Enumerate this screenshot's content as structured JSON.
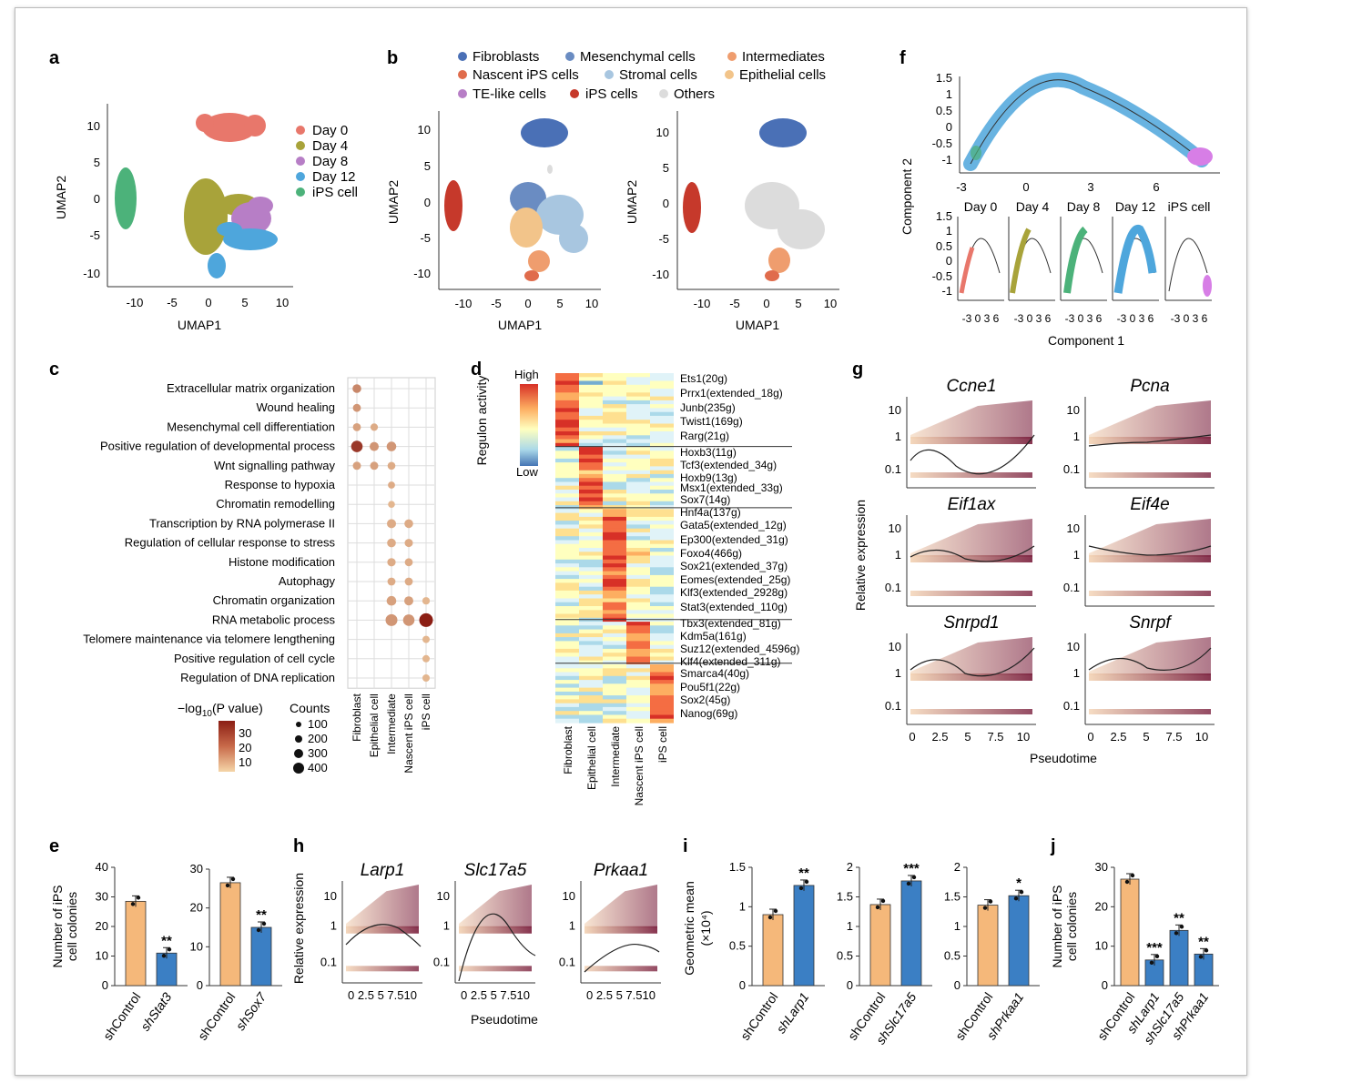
{
  "panel_labels": [
    "a",
    "b",
    "c",
    "d",
    "e",
    "f",
    "g",
    "h",
    "i",
    "j"
  ],
  "colors": {
    "day0": "#e8776b",
    "day4": "#a8a33a",
    "day8": "#b77ec6",
    "day12": "#4ea6dc",
    "ips": "#4cb27a",
    "fibroblasts": "#4a70b6",
    "mesenchymal": "#6a8cc2",
    "intermediates": "#ef9d6e",
    "nascent": "#e06c4c",
    "stromal": "#a8c6e0",
    "epithelial": "#f2c48a",
    "te_like": "#b77ec6",
    "ips_cells": "#c6392b",
    "others": "#dcdcdc",
    "bar_orange": "#f5b87a",
    "bar_blue": "#3b7fc4"
  },
  "panel_a": {
    "xlabel": "UMAP1",
    "ylabel": "UMAP2",
    "xticks": [
      "-10",
      "-5",
      "0",
      "5",
      "10"
    ],
    "yticks": [
      "10",
      "5",
      "0",
      "-5",
      "-10"
    ],
    "legend": [
      "Day 0",
      "Day 4",
      "Day 8",
      "Day 12",
      "iPS cell"
    ]
  },
  "panel_b": {
    "xlabel": "UMAP1",
    "ylabel": "UMAP2",
    "xticks": [
      "-10",
      "-5",
      "0",
      "5",
      "10"
    ],
    "yticks": [
      "10",
      "5",
      "0",
      "-5",
      "-10"
    ],
    "legend": [
      "Fibroblasts",
      "Mesenchymal cells",
      "Intermediates",
      "Nascent iPS cells",
      "Stromal cells",
      "Epithelial cells",
      "TE-like cells",
      "iPS cells",
      "Others"
    ]
  },
  "panel_c": {
    "terms": [
      "Extracellular matrix organization",
      "Wound healing",
      "Mesenchymal cell differentiation",
      "Positive regulation of developmental process",
      "Wnt signalling pathway",
      "Response to hypoxia",
      "Chromatin remodelling",
      "Transcription by RNA polymerase II",
      "Regulation of cellular response to stress",
      "Histone modification",
      "Autophagy",
      "Chromatin organization",
      "RNA metabolic process",
      "Telomere maintenance via telomere lengthening",
      "Positive regulation of cell cycle",
      "Regulation of DNA replication"
    ],
    "columns": [
      "Fibroblast",
      "Epithelial cell",
      "Intermediate",
      "Nascent iPS cell",
      "iPS cell"
    ],
    "color_legend_title_pre": "−log",
    "color_legend_title_sub": "10",
    "color_legend_title_post": "(P value)",
    "color_ticks": [
      "30",
      "20",
      "10"
    ],
    "size_legend_title": "Counts",
    "size_ticks": [
      "100",
      "200",
      "300",
      "400"
    ],
    "dots": [
      [
        0,
        0,
        15,
        180
      ],
      [
        1,
        0,
        12,
        150
      ],
      [
        2,
        0,
        10,
        150
      ],
      [
        2,
        1,
        8,
        130
      ],
      [
        3,
        0,
        30,
        300
      ],
      [
        3,
        1,
        12,
        200
      ],
      [
        3,
        2,
        12,
        220
      ],
      [
        4,
        0,
        10,
        160
      ],
      [
        4,
        1,
        10,
        160
      ],
      [
        4,
        2,
        8,
        140
      ],
      [
        5,
        2,
        8,
        110
      ],
      [
        6,
        2,
        6,
        100
      ],
      [
        7,
        2,
        8,
        200
      ],
      [
        7,
        3,
        8,
        180
      ],
      [
        8,
        2,
        8,
        180
      ],
      [
        8,
        3,
        8,
        160
      ],
      [
        9,
        2,
        8,
        170
      ],
      [
        9,
        3,
        8,
        150
      ],
      [
        10,
        2,
        8,
        150
      ],
      [
        10,
        3,
        8,
        150
      ],
      [
        11,
        2,
        10,
        220
      ],
      [
        11,
        3,
        10,
        200
      ],
      [
        11,
        4,
        6,
        130
      ],
      [
        12,
        2,
        12,
        320
      ],
      [
        12,
        3,
        12,
        300
      ],
      [
        12,
        4,
        35,
        400
      ],
      [
        13,
        4,
        6,
        120
      ],
      [
        14,
        4,
        6,
        120
      ],
      [
        15,
        4,
        6,
        120
      ]
    ]
  },
  "panel_d": {
    "title": "Regulon activity",
    "high": "High",
    "low": "Low",
    "columns": [
      "Fibroblast",
      "Epithelial cell",
      "Intermediate",
      "Nascent iPS cell",
      "iPS cell"
    ],
    "regulons": [
      "Ets1(20g)",
      "Prrx1(extended_18g)",
      "Junb(235g)",
      "Twist1(169g)",
      "Rarg(21g)",
      "Hoxb3(11g)",
      "Tcf3(extended_34g)",
      "Hoxb9(13g)",
      "Msx1(extended_33g)",
      "Sox7(14g)",
      "Hnf4a(137g)",
      "Gata5(extended_12g)",
      "Ep300(extended_31g)",
      "Foxo4(466g)",
      "Sox21(extended_37g)",
      "Eomes(extended_25g)",
      "Klf3(extended_2928g)",
      "Stat3(extended_110g)",
      "Tbx3(extended_81g)",
      "Kdm5a(161g)",
      "Suz12(extended_4596g)",
      "Klf4(extended_311g)",
      "Smarca4(40g)",
      "Pou5f1(22g)",
      "Sox2(45g)",
      "Nanog(69g)"
    ]
  },
  "panel_e": {
    "ylabel1": "Number of iPS",
    "ylabel2": "cell colonies",
    "left": {
      "yticks": [
        "40",
        "30",
        "20",
        "10",
        "0"
      ],
      "ylim": [
        0,
        40
      ],
      "categories": [
        "shControl",
        "shStat3"
      ],
      "values": [
        28.5,
        11
      ],
      "sig": [
        "",
        "**"
      ]
    },
    "right": {
      "yticks": [
        "30",
        "20",
        "10",
        "0"
      ],
      "ylim": [
        0,
        30
      ],
      "categories": [
        "shControl",
        "shSox7"
      ],
      "values": [
        26.5,
        15
      ],
      "sig": [
        "",
        "**"
      ]
    }
  },
  "panel_f": {
    "xlabel": "Component 1",
    "ylabel": "Component 2",
    "top_xticks": [
      "-3",
      "0",
      "3",
      "6"
    ],
    "top_yticks": [
      "1.5",
      "1",
      "0.5",
      "0",
      "-0.5",
      "-1"
    ],
    "small_titles": [
      "Day 0",
      "Day 4",
      "Day 8",
      "Day 12",
      "iPS cell"
    ],
    "small_yticks": [
      "1.5",
      "1",
      "0.5",
      "0",
      "-0.5",
      "-1"
    ],
    "small_xticks": "-3 0 3 6"
  },
  "panel_g": {
    "genes": [
      "Ccne1",
      "Pcna",
      "Eif1ax",
      "Eif4e",
      "Snrpd1",
      "Snrpf"
    ],
    "ylabel": "Relative expression",
    "xlabel": "Pseudotime",
    "yticks": [
      "10",
      "1",
      "0.1"
    ],
    "xticks": [
      "0",
      "2.5",
      "5",
      "7.5",
      "10"
    ]
  },
  "panel_h": {
    "genes": [
      "Larp1",
      "Slc17a5",
      "Prkaa1"
    ],
    "ylabel": "Relative expression",
    "xlabel": "Pseudotime",
    "yticks": [
      "10",
      "1",
      "0.1"
    ],
    "xticks": "0 2.5 5 7.510"
  },
  "panel_i": {
    "ylabel1": "Geometric mean",
    "ylabel2": "(×10⁴)",
    "charts": [
      {
        "yticks": [
          "1.5",
          "1",
          "0.5",
          "0"
        ],
        "ylim": [
          0,
          1.5
        ],
        "categories": [
          "shControl",
          "shLarp1"
        ],
        "values": [
          0.9,
          1.27
        ],
        "sig": [
          "",
          "**"
        ]
      },
      {
        "yticks": [
          "2",
          "1.5",
          "1",
          "0.5",
          "0"
        ],
        "ylim": [
          0,
          2
        ],
        "categories": [
          "shControl",
          "shSlc17a5"
        ],
        "values": [
          1.37,
          1.77
        ],
        "sig": [
          "",
          "***"
        ]
      },
      {
        "yticks": [
          "2",
          "1.5",
          "1",
          "0.5",
          "0"
        ],
        "ylim": [
          0,
          2
        ],
        "categories": [
          "shControl",
          "shPrkaa1"
        ],
        "values": [
          1.36,
          1.52
        ],
        "sig": [
          "",
          "*"
        ]
      }
    ]
  },
  "panel_j": {
    "ylabel1": "Number of iPS",
    "ylabel2": "cell colonies",
    "yticks": [
      "30",
      "20",
      "10",
      "0"
    ],
    "ylim": [
      0,
      30
    ],
    "categories": [
      "shControl",
      "shLarp1",
      "shSlc17a5",
      "shPrkaa1"
    ],
    "values": [
      27,
      6.5,
      14,
      8
    ],
    "sig": [
      "",
      "***",
      "**",
      "**"
    ]
  },
  "chart_data": [
    {
      "type": "bar",
      "title": "",
      "categories": [
        "shControl",
        "shStat3"
      ],
      "values": [
        28.5,
        11
      ],
      "ylabel": "Number of iPS cell colonies",
      "ylim": [
        0,
        40
      ]
    },
    {
      "type": "bar",
      "title": "",
      "categories": [
        "shControl",
        "shSox7"
      ],
      "values": [
        26.5,
        15
      ],
      "ylabel": "Number of iPS cell colonies",
      "ylim": [
        0,
        30
      ]
    },
    {
      "type": "bar",
      "title": "",
      "categories": [
        "shControl",
        "shLarp1"
      ],
      "values": [
        0.9,
        1.27
      ],
      "ylabel": "Geometric mean (×10⁴)",
      "ylim": [
        0,
        1.5
      ]
    },
    {
      "type": "bar",
      "title": "",
      "categories": [
        "shControl",
        "shSlc17a5"
      ],
      "values": [
        1.37,
        1.77
      ],
      "ylabel": "Geometric mean (×10⁴)",
      "ylim": [
        0,
        2
      ]
    },
    {
      "type": "bar",
      "title": "",
      "categories": [
        "shControl",
        "shPrkaa1"
      ],
      "values": [
        1.36,
        1.52
      ],
      "ylabel": "Geometric mean (×10⁴)",
      "ylim": [
        0,
        2
      ]
    },
    {
      "type": "bar",
      "title": "",
      "categories": [
        "shControl",
        "shLarp1",
        "shSlc17a5",
        "shPrkaa1"
      ],
      "values": [
        27,
        6.5,
        14,
        8
      ],
      "ylabel": "Number of iPS cell colonies",
      "ylim": [
        0,
        30
      ]
    }
  ]
}
